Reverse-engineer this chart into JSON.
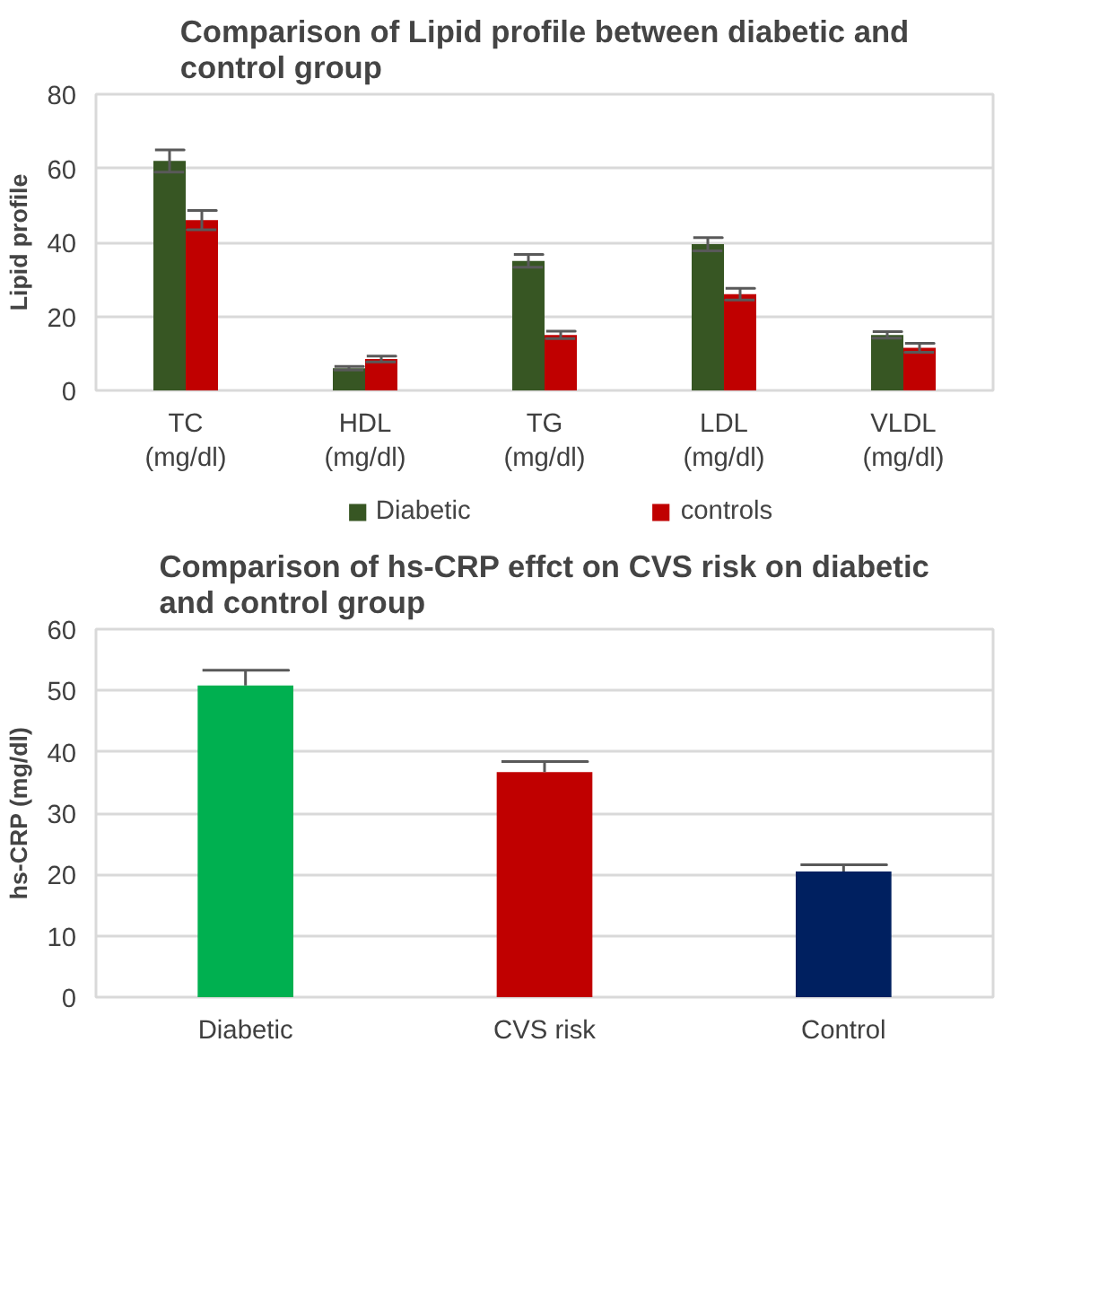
{
  "chart_data": [
    {
      "type": "bar",
      "title": "Comparison of Lipid profile between diabetic and control group",
      "ylabel": "Lipid profile",
      "categories": [
        "TC (mg/dl)",
        "HDL (mg/dl)",
        "TG (mg/dl)",
        "LDL (mg/dl)",
        "VLDL (mg/dl)"
      ],
      "series": [
        {
          "name": "Diabetic",
          "color": "#375623",
          "values": [
            62,
            6,
            35,
            39.5,
            15
          ],
          "errors": [
            3,
            0.5,
            1.7,
            1.8,
            0.9
          ]
        },
        {
          "name": "controls",
          "color": "#c00000",
          "values": [
            46,
            8.5,
            15,
            26,
            11.5
          ],
          "errors": [
            2.6,
            0.8,
            1.0,
            1.6,
            1.2
          ]
        }
      ],
      "ylim": [
        0,
        80
      ],
      "yticks": [
        0,
        20,
        40,
        60,
        80
      ],
      "grid": "y",
      "legend": "bottom"
    },
    {
      "type": "bar",
      "title": "Comparison of hs-CRP effct on CVS risk on diabetic and control group",
      "ylabel": "hs-CRP (mg/dl)",
      "categories": [
        "Diabetic",
        "CVS risk",
        "Control"
      ],
      "values": [
        50.8,
        36.7,
        20.5
      ],
      "colors": [
        "#00b050",
        "#c00000",
        "#002060"
      ],
      "errors": [
        [
          50.8,
          53.3
        ],
        [
          36.7,
          38.4
        ],
        [
          20.5,
          21.6
        ]
      ],
      "ylim": [
        0,
        60
      ],
      "yticks": [
        0,
        10,
        20,
        30,
        40,
        50,
        60
      ],
      "grid": "y"
    }
  ]
}
